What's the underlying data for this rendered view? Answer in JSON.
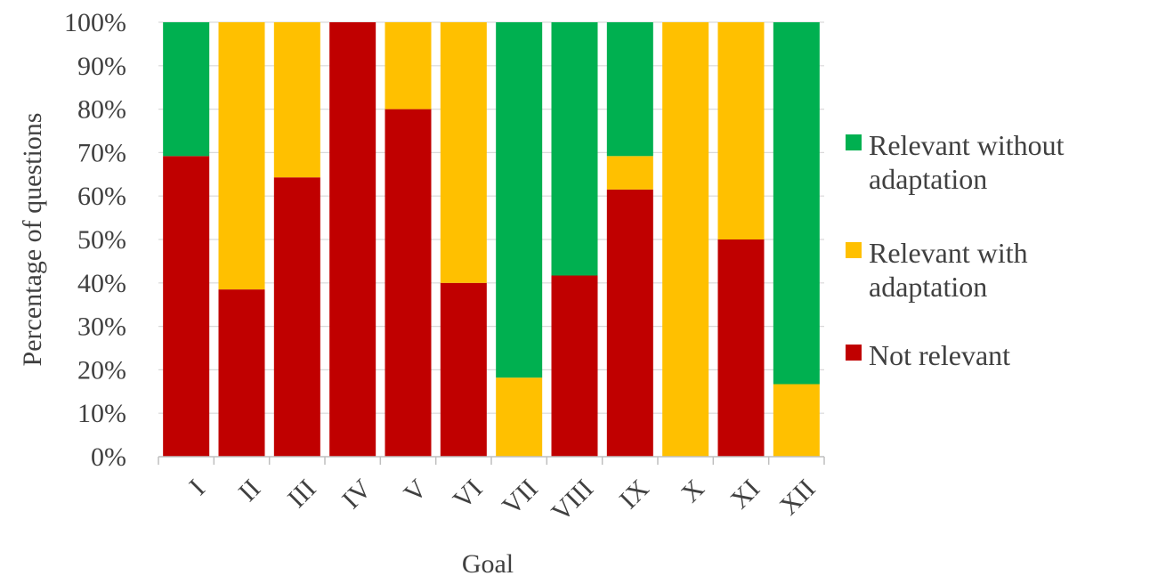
{
  "chart_data": {
    "type": "bar",
    "stacked": true,
    "title": "",
    "xlabel": "Goal",
    "ylabel": "Percentage of questions",
    "ylim": [
      0,
      100
    ],
    "y_ticks": [
      0,
      10,
      20,
      30,
      40,
      50,
      60,
      70,
      80,
      90,
      100
    ],
    "y_tick_suffix": "%",
    "grid": true,
    "legend_position": "right",
    "categories": [
      "I",
      "II",
      "III",
      "IV",
      "V",
      "VI",
      "VII",
      "VIII",
      "IX",
      "X",
      "XI",
      "XII"
    ],
    "series": [
      {
        "name": "Not relevant",
        "color": "#C00000",
        "values": [
          69.2,
          38.5,
          64.3,
          100,
          80,
          40,
          0,
          41.7,
          61.5,
          0,
          50,
          0
        ]
      },
      {
        "name": "Relevant with adaptation",
        "color": "#FFC000",
        "values": [
          0,
          61.5,
          35.7,
          0,
          20,
          60,
          18.2,
          0,
          7.7,
          100,
          50,
          16.7
        ]
      },
      {
        "name": "Relevant without adaptation",
        "color": "#00B050",
        "values": [
          30.8,
          0,
          0,
          0,
          0,
          0,
          81.8,
          58.3,
          30.8,
          0,
          0,
          83.3
        ]
      }
    ],
    "legend": [
      {
        "lines": [
          "Relevant without",
          "adaptation"
        ],
        "color": "#00B050"
      },
      {
        "lines": [
          "Relevant with",
          "adaptation"
        ],
        "color": "#FFC000"
      },
      {
        "lines": [
          "Not relevant"
        ],
        "color": "#C00000"
      }
    ]
  }
}
